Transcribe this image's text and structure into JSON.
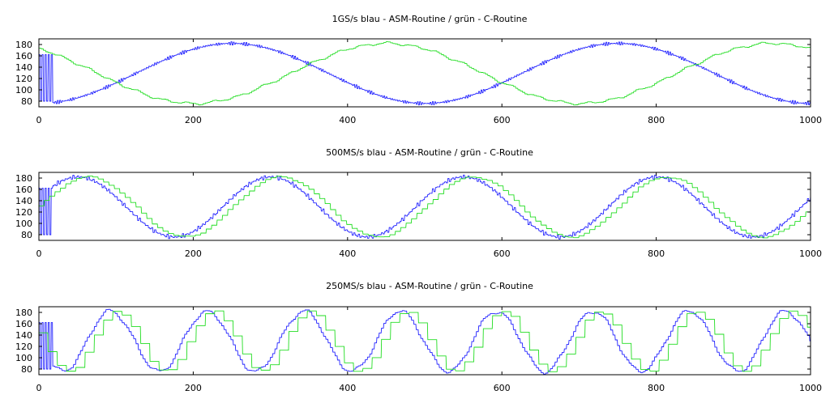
{
  "chart_data": [
    {
      "type": "line",
      "title": "1GS/s blau - ASM-Routine / grün - C-Routine",
      "xlim": [
        0,
        1000
      ],
      "ylim": [
        70,
        190
      ],
      "xticks": [
        0,
        200,
        400,
        600,
        800,
        1000
      ],
      "yticks": [
        80,
        100,
        120,
        140,
        160,
        180
      ],
      "grid": false,
      "series": [
        {
          "color": "#2222ff",
          "period": 500,
          "min": 76,
          "max": 182,
          "first_peak_x": 250,
          "ripple": 3,
          "step_width": 1.5,
          "startup_glitch_end_x": 18
        },
        {
          "color": "#22dd22",
          "period": 500,
          "min": 76,
          "max": 182,
          "first_peak_x": 450,
          "ripple": 3,
          "step_width": 3,
          "startup_glitch_end_x": 0
        }
      ]
    },
    {
      "type": "line",
      "title": "500MS/s blau - ASM-Routine / grün - C-Routine",
      "xlim": [
        0,
        1000
      ],
      "ylim": [
        70,
        190
      ],
      "xticks": [
        0,
        200,
        400,
        600,
        800,
        1000
      ],
      "yticks": [
        80,
        100,
        120,
        140,
        160,
        180
      ],
      "grid": false,
      "series": [
        {
          "color": "#2222ff",
          "period": 250,
          "min": 76,
          "max": 182,
          "first_peak_x": 50,
          "ripple": 4,
          "step_width": 2,
          "startup_glitch_end_x": 18
        },
        {
          "color": "#22dd22",
          "period": 250,
          "min": 76,
          "max": 182,
          "first_peak_x": 62,
          "ripple": 2,
          "step_width": 7,
          "startup_glitch_end_x": 0
        }
      ]
    },
    {
      "type": "line",
      "title": "250MS/s blau - ASM-Routine / grün - C-Routine",
      "xlim": [
        0,
        1000
      ],
      "ylim": [
        70,
        190
      ],
      "xticks": [
        0,
        200,
        400,
        600,
        800,
        1000
      ],
      "yticks": [
        80,
        100,
        120,
        140,
        160,
        180
      ],
      "grid": false,
      "series": [
        {
          "color": "#2222ff",
          "period": 125,
          "min": 76,
          "max": 182,
          "first_peak_x": 92,
          "ripple": 5,
          "step_width": 3,
          "startup_glitch_end_x": 18
        },
        {
          "color": "#22dd22",
          "period": 125,
          "min": 76,
          "max": 182,
          "first_peak_x": 99,
          "ripple": 2,
          "step_width": 12,
          "startup_glitch_end_x": 0
        }
      ]
    }
  ]
}
